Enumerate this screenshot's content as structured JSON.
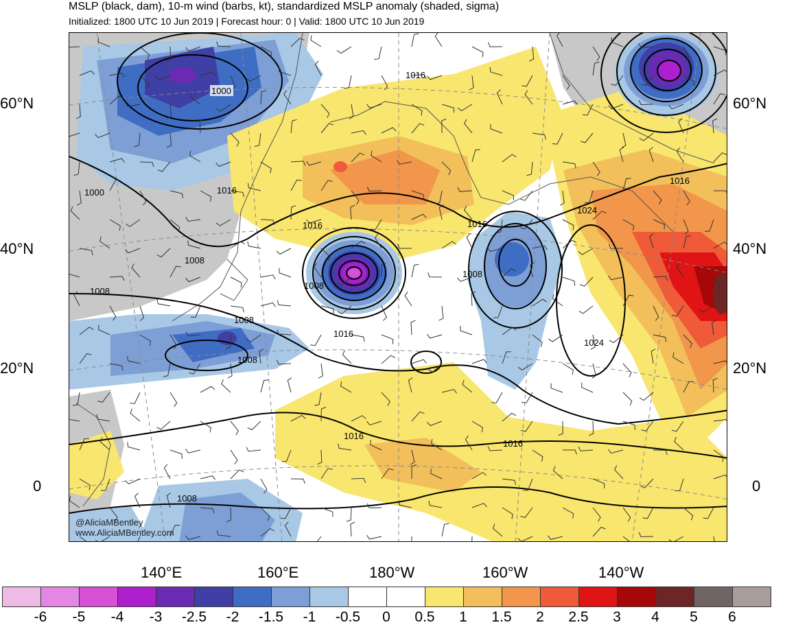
{
  "header": {
    "title": "MSLP (black, dam), 10-m wind (barbs, kt), standardized MSLP anomaly (shaded, sigma)",
    "subtitle": "Initialized: 1800 UTC 10 Jun 2019 | Forecast hour: 0 | Valid: 1800 UTC 10 Jun 2019"
  },
  "map": {
    "lat_labels": [
      "60°N",
      "40°N",
      "20°N",
      "0"
    ],
    "lon_labels": [
      "140°E",
      "160°E",
      "180°W",
      "160°W",
      "140°W"
    ],
    "isobar_labels": [
      "1000",
      "1016",
      "1000",
      "1016",
      "1016",
      "1008",
      "1008",
      "1008",
      "1008",
      "1008",
      "1016",
      "1016",
      "1024",
      "1016",
      "1008",
      "1024",
      "1016",
      "1016",
      "1008"
    ],
    "credit_line1": "@AliciaMBentley",
    "credit_line2": "www.AliciaMBentley.com"
  },
  "colors": {
    "land_gray": "#c8c8c8",
    "coast": "#555555",
    "isobar": "#000000",
    "grid": "#8a8a8a"
  },
  "colorbar": {
    "colors": [
      "#eebbe6",
      "#e487e4",
      "#d651d6",
      "#ad1fcf",
      "#6a2ab3",
      "#3f3fa5",
      "#3f6dc4",
      "#7d9fd6",
      "#a8c8e6",
      "#ffffff",
      "#ffffff",
      "#f9e66e",
      "#f2bf5a",
      "#f1964a",
      "#ef5a38",
      "#e01414",
      "#a60707",
      "#6e2525",
      "#6f6563",
      "#a89d9b"
    ],
    "ticks": [
      "-6",
      "-5",
      "-4",
      "-3",
      "-2.5",
      "-2",
      "-1.5",
      "-1",
      "-0.5",
      "0",
      "0.5",
      "1",
      "1.5",
      "2",
      "2.5",
      "3",
      "4",
      "5",
      "6"
    ]
  }
}
